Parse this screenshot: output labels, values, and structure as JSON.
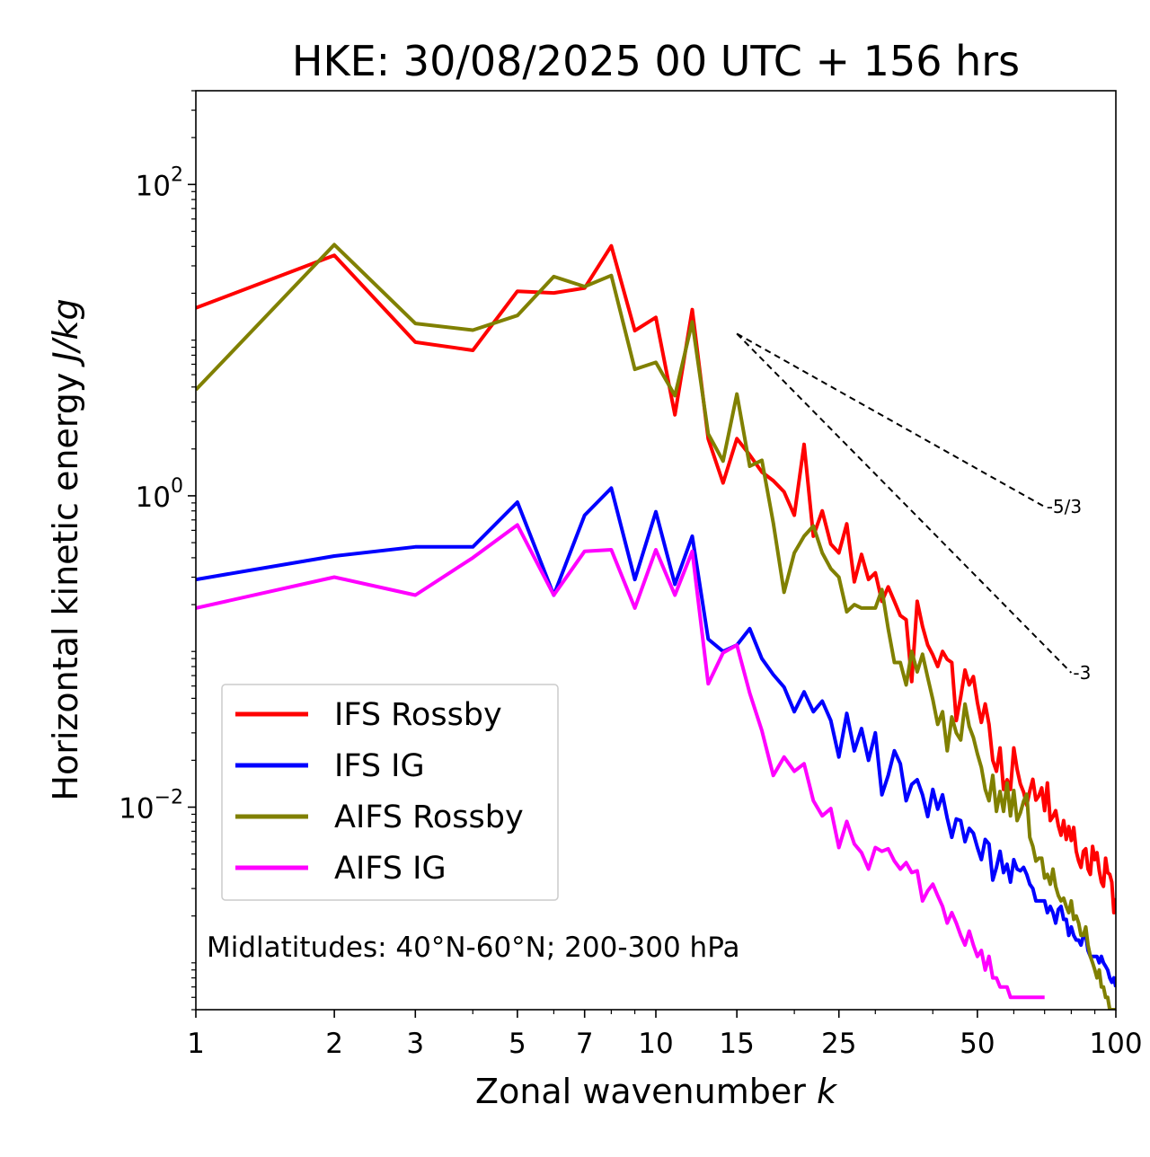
{
  "chart_data": {
    "type": "line",
    "title": "HKE: 30/08/2025 00 UTC + 156 hrs",
    "xlabel_main": "Zonal wavenumber ",
    "xlabel_italic": "k",
    "ylabel_main": "Horizontal kinetic energy ",
    "ylabel_italic": "J/kg",
    "xscale": "log",
    "yscale": "log",
    "xlim": [
      1,
      100
    ],
    "ylim": [
      0.0005,
      400
    ],
    "x_ticks": [
      {
        "value": 1,
        "label": "1"
      },
      {
        "value": 2,
        "label": "2"
      },
      {
        "value": 3,
        "label": "3"
      },
      {
        "value": 5,
        "label": "5"
      },
      {
        "value": 7,
        "label": "7"
      },
      {
        "value": 10,
        "label": "10"
      },
      {
        "value": 15,
        "label": "15"
      },
      {
        "value": 25,
        "label": "25"
      },
      {
        "value": 50,
        "label": "50"
      },
      {
        "value": 100,
        "label": "100"
      }
    ],
    "y_ticks": [
      {
        "value": 100,
        "base": "10",
        "exp": "2"
      },
      {
        "value": 1,
        "base": "10",
        "exp": "0"
      },
      {
        "value": 0.01,
        "base": "10",
        "exp": "−2"
      }
    ],
    "annotation": "Midlatitudes: 40°N-60°N; 200-300 hPa",
    "legend_position": "lower-left",
    "reference_lines": [
      {
        "slope_label": "-5/3",
        "x": [
          15,
          70
        ],
        "y": [
          11.0,
          0.85
        ]
      },
      {
        "slope_label": "-3",
        "x": [
          15,
          80
        ],
        "y": [
          11.0,
          0.073
        ]
      }
    ],
    "series": [
      {
        "name": "IFS Rossby",
        "color": "#ff0000",
        "x": [
          1,
          2,
          3,
          4,
          5,
          6,
          7,
          8,
          9,
          10,
          11,
          12,
          13,
          14,
          15,
          16,
          17,
          18,
          19,
          20,
          21,
          22,
          23,
          24,
          25,
          26,
          27,
          28,
          29,
          30,
          31,
          32,
          33,
          34,
          35,
          36,
          37,
          38,
          39,
          40,
          41,
          42,
          43,
          44,
          45,
          46,
          47,
          48,
          49,
          50,
          51,
          52,
          53,
          54,
          55,
          56,
          57,
          58,
          59,
          60,
          61,
          62,
          63,
          64,
          65,
          66,
          67,
          68,
          69,
          70,
          71,
          72,
          73,
          74,
          75,
          76,
          77,
          78,
          79,
          80,
          81,
          82,
          83,
          84,
          85,
          86,
          87,
          88,
          89,
          90,
          91,
          92,
          93,
          94,
          95,
          96,
          97,
          98,
          99,
          100
        ],
        "y": [
          16.1,
          35.0,
          9.7,
          8.6,
          20.6,
          20.1,
          21.6,
          40.3,
          11.5,
          14.0,
          3.31,
          15.7,
          2.32,
          1.21,
          2.33,
          1.83,
          1.42,
          1.25,
          1.06,
          0.75,
          2.14,
          0.55,
          0.8,
          0.49,
          0.43,
          0.66,
          0.28,
          0.42,
          0.29,
          0.32,
          0.21,
          0.26,
          0.21,
          0.17,
          0.16,
          0.064,
          0.21,
          0.145,
          0.11,
          0.095,
          0.08,
          0.1,
          0.089,
          0.085,
          0.036,
          0.051,
          0.076,
          0.061,
          0.069,
          0.047,
          0.035,
          0.046,
          0.034,
          0.02,
          0.017,
          0.024,
          0.013,
          0.015,
          0.013,
          0.024,
          0.0175,
          0.0141,
          0.0125,
          0.0103,
          0.0127,
          0.0151,
          0.0111,
          0.0118,
          0.0133,
          0.0095,
          0.0143,
          0.0082,
          0.0087,
          0.0095,
          0.0076,
          0.0066,
          0.0082,
          0.0062,
          0.0075,
          0.0061,
          0.0074,
          0.0052,
          0.0045,
          0.0041,
          0.0052,
          0.0054,
          0.004,
          0.0037,
          0.0056,
          0.0046,
          0.0051,
          0.0039,
          0.0033,
          0.0031,
          0.0047,
          0.0038,
          0.0037,
          0.0033,
          0.0021,
          0.0026
        ]
      },
      {
        "name": "IFS IG",
        "color": "#0000ff",
        "x": [
          1,
          2,
          3,
          4,
          5,
          6,
          7,
          8,
          9,
          10,
          11,
          12,
          13,
          14,
          15,
          16,
          17,
          18,
          19,
          20,
          21,
          22,
          23,
          24,
          25,
          26,
          27,
          28,
          29,
          30,
          31,
          32,
          33,
          34,
          35,
          36,
          37,
          38,
          39,
          40,
          41,
          42,
          43,
          44,
          45,
          46,
          47,
          48,
          49,
          50,
          51,
          52,
          53,
          54,
          55,
          56,
          57,
          58,
          59,
          60,
          61,
          62,
          63,
          64,
          65,
          66,
          67,
          68,
          69,
          70,
          71,
          72,
          73,
          74,
          75,
          76,
          77,
          78,
          79,
          80,
          81,
          82,
          83,
          84,
          85,
          86,
          87,
          88,
          89,
          90,
          91,
          92,
          93,
          94,
          95,
          96,
          97,
          98,
          99,
          100
        ],
        "y": [
          0.29,
          0.41,
          0.47,
          0.47,
          0.91,
          0.23,
          0.75,
          1.12,
          0.29,
          0.79,
          0.27,
          0.55,
          0.12,
          0.1,
          0.11,
          0.14,
          0.09,
          0.071,
          0.059,
          0.041,
          0.055,
          0.041,
          0.048,
          0.036,
          0.021,
          0.04,
          0.023,
          0.032,
          0.02,
          0.03,
          0.012,
          0.016,
          0.023,
          0.019,
          0.011,
          0.014,
          0.015,
          0.012,
          0.0087,
          0.013,
          0.0097,
          0.012,
          0.0085,
          0.0064,
          0.0084,
          0.0082,
          0.006,
          0.0073,
          0.0068,
          0.0055,
          0.0046,
          0.0062,
          0.0058,
          0.0034,
          0.0041,
          0.0052,
          0.0038,
          0.0043,
          0.0033,
          0.0046,
          0.004,
          0.0039,
          0.0041,
          0.0037,
          0.0032,
          0.003,
          0.0025,
          0.0025,
          0.0025,
          0.0025,
          0.0021,
          0.0023,
          0.0021,
          0.0018,
          0.0022,
          0.0023,
          0.0019,
          0.0019,
          0.0015,
          0.0017,
          0.0015,
          0.0014,
          0.0014,
          0.0013,
          0.0015,
          0.0015,
          0.0012,
          0.0011,
          0.0011,
          0.0011,
          0.0011,
          0.001,
          0.0011,
          0.001,
          0.00095,
          0.0009,
          0.0008,
          0.00075,
          0.0008,
          0.0007
        ]
      },
      {
        "name": "AIFS Rossby",
        "color": "#808000",
        "x": [
          1,
          2,
          3,
          4,
          5,
          6,
          7,
          8,
          9,
          10,
          11,
          12,
          13,
          14,
          15,
          16,
          17,
          18,
          19,
          20,
          21,
          22,
          23,
          24,
          25,
          26,
          27,
          28,
          29,
          30,
          31,
          32,
          33,
          34,
          35,
          36,
          37,
          38,
          39,
          40,
          41,
          42,
          43,
          44,
          45,
          46,
          47,
          48,
          49,
          50,
          51,
          52,
          53,
          54,
          55,
          56,
          57,
          58,
          59,
          60,
          61,
          62,
          63,
          64,
          65,
          66,
          67,
          68,
          69,
          70,
          71,
          72,
          73,
          74,
          75,
          76,
          77,
          78,
          79,
          80,
          81,
          82,
          83,
          84,
          85,
          86,
          87,
          88,
          89,
          90,
          91,
          92,
          93,
          94,
          95,
          96,
          97,
          98,
          99,
          100
        ],
        "y": [
          4.8,
          41.0,
          12.8,
          11.6,
          14.4,
          25.6,
          22.1,
          26.0,
          6.5,
          7.2,
          4.4,
          13.1,
          2.5,
          1.67,
          4.5,
          1.55,
          1.69,
          0.67,
          0.24,
          0.43,
          0.55,
          0.64,
          0.43,
          0.34,
          0.3,
          0.18,
          0.2,
          0.19,
          0.19,
          0.19,
          0.25,
          0.14,
          0.085,
          0.085,
          0.061,
          0.1,
          0.074,
          0.096,
          0.068,
          0.049,
          0.034,
          0.041,
          0.023,
          0.038,
          0.03,
          0.027,
          0.046,
          0.033,
          0.028,
          0.022,
          0.018,
          0.013,
          0.011,
          0.016,
          0.0094,
          0.0126,
          0.0094,
          0.0143,
          0.0088,
          0.0128,
          0.0082,
          0.0092,
          0.0109,
          0.0121,
          0.0064,
          0.0056,
          0.0045,
          0.0047,
          0.0047,
          0.0035,
          0.0037,
          0.0032,
          0.004,
          0.0031,
          0.0027,
          0.0025,
          0.0026,
          0.0023,
          0.0021,
          0.0025,
          0.0019,
          0.002,
          0.0018,
          0.0015,
          0.0015,
          0.0017,
          0.0013,
          0.0011,
          0.001,
          0.0009,
          0.0008,
          0.0009,
          0.0007,
          0.0007,
          0.0006,
          0.0006,
          0.0005,
          0.0005,
          0.0005,
          0.0005
        ]
      },
      {
        "name": "AIFS IG",
        "color": "#ff00ff",
        "x": [
          1,
          2,
          3,
          4,
          5,
          6,
          7,
          8,
          9,
          10,
          11,
          12,
          13,
          14,
          15,
          16,
          17,
          18,
          19,
          20,
          21,
          22,
          23,
          24,
          25,
          26,
          27,
          28,
          29,
          30,
          31,
          32,
          33,
          34,
          35,
          36,
          37,
          38,
          39,
          40,
          41,
          42,
          43,
          44,
          45,
          46,
          47,
          48,
          49,
          50,
          51,
          52,
          53,
          54,
          55,
          56,
          57,
          58,
          59,
          60,
          61,
          62,
          63,
          64,
          65,
          66,
          67,
          68,
          69,
          70
        ],
        "y": [
          0.19,
          0.3,
          0.23,
          0.4,
          0.65,
          0.23,
          0.44,
          0.45,
          0.19,
          0.45,
          0.23,
          0.44,
          0.062,
          0.098,
          0.11,
          0.054,
          0.031,
          0.016,
          0.021,
          0.017,
          0.019,
          0.011,
          0.0088,
          0.0098,
          0.0055,
          0.0081,
          0.0058,
          0.0051,
          0.004,
          0.0055,
          0.0052,
          0.0054,
          0.0045,
          0.004,
          0.0044,
          0.0038,
          0.0039,
          0.0025,
          0.0029,
          0.0032,
          0.0027,
          0.0023,
          0.0018,
          0.0021,
          0.0018,
          0.0015,
          0.0013,
          0.0016,
          0.0013,
          0.0011,
          0.0012,
          0.0009,
          0.0011,
          0.0008,
          0.0008,
          0.0007,
          0.0007,
          0.0007,
          0.0006,
          0.0006,
          0.0006,
          0.0006,
          0.0006,
          0.0006,
          0.0006,
          0.0006,
          0.0006,
          0.0006,
          0.0006,
          0.0006
        ]
      }
    ]
  }
}
